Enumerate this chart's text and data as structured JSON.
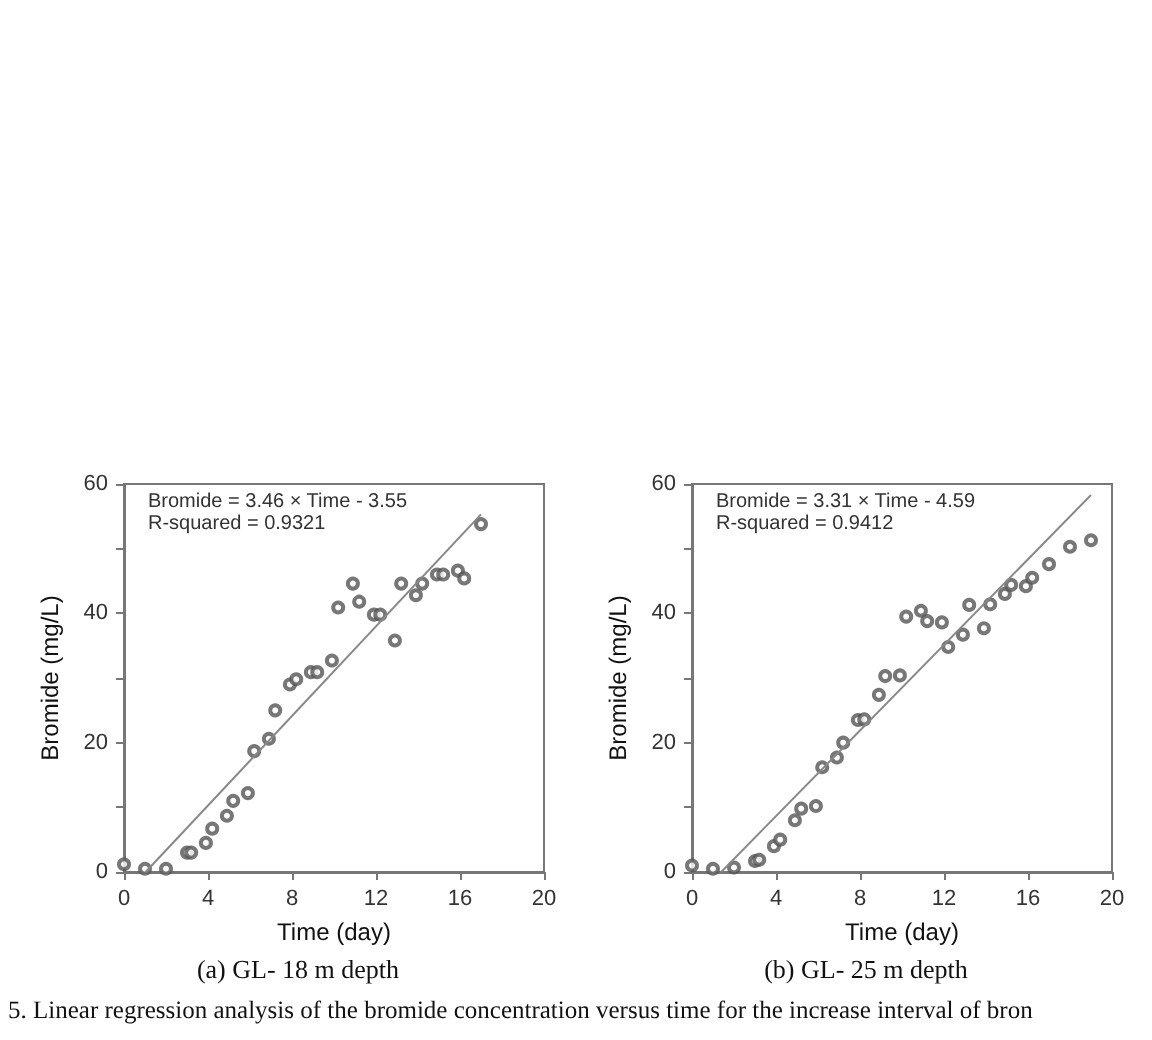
{
  "chart_data": [
    {
      "type": "scatter",
      "title": "(a) GL- 18 m depth",
      "xlabel": "Time (day)",
      "ylabel": "Bromide (mg/L)",
      "annotations": [
        "Bromide = 3.46 × Time - 3.55",
        "R-squared = 0.9321",
        "5. Linear regression analysis of the bromide concentration versus time for the increase interval of bron"
      ],
      "series": [
        {
          "color": "#555555",
          "marker": "circle",
          "x": [
            0,
            1,
            2,
            3,
            3.2,
            3.9,
            4.2,
            4.9,
            5.2,
            5.9,
            6.2,
            6.9,
            7.2,
            7.9,
            8.2,
            8.9,
            9.2,
            9.9,
            10.2,
            10.9,
            11.2,
            11.9,
            12.2,
            12.9,
            13.2,
            13.9,
            14.2,
            14.9,
            15.2,
            15.9,
            16.2,
            17
          ],
          "values": [
            1.2,
            0.5,
            0.5,
            3,
            3,
            4.5,
            6.7,
            8.7,
            11,
            12.2,
            18.7,
            20.6,
            25,
            29,
            29.8,
            30.9,
            30.9,
            32.7,
            40.9,
            44.6,
            41.8,
            39.8,
            39.8,
            35.8,
            44.6,
            42.8,
            44.6,
            46,
            46,
            46.6,
            45.4,
            53.8
          ]
        },
        {
          "type": "line",
          "color": "#888888",
          "line_style": "solid",
          "x": [
            1.03,
            17
          ],
          "values": [
            0,
            55.3
          ]
        }
      ],
      "xlim": [
        0,
        20
      ],
      "xticks": [
        0,
        4,
        8,
        12,
        16,
        20
      ],
      "ylim": [
        0,
        60
      ],
      "yticks": [
        0,
        {
          "value": 10,
          "label": null
        },
        20,
        {
          "value": 30,
          "label": null
        },
        40,
        {
          "value": 50,
          "label": null
        },
        60
      ],
      "grid": false
    },
    {
      "type": "scatter",
      "title": "(b) GL- 25 m depth",
      "xlabel": "Time (day)",
      "ylabel": "Bromide (mg/L)",
      "annotations": [
        "Bromide = 3.31 × Time - 4.59",
        "R-squared = 0.9412"
      ],
      "series": [
        {
          "color": "#555555",
          "marker": "circle",
          "x": [
            0,
            1,
            2,
            3,
            3.2,
            3.9,
            4.2,
            4.9,
            5.2,
            5.9,
            6.2,
            6.9,
            7.2,
            7.9,
            8.2,
            8.9,
            9.2,
            9.9,
            10.2,
            10.9,
            11.2,
            11.9,
            12.2,
            12.9,
            13.2,
            13.9,
            14.2,
            14.9,
            15.2,
            15.9,
            16.2,
            17,
            18,
            19
          ],
          "values": [
            1,
            0.5,
            0.7,
            1.7,
            1.9,
            4,
            5,
            8,
            9.8,
            10.2,
            16.2,
            17.7,
            20,
            23.5,
            23.6,
            27.4,
            30.3,
            30.4,
            39.5,
            40.4,
            38.8,
            38.6,
            34.8,
            36.7,
            41.3,
            37.7,
            41.4,
            43,
            44.4,
            44.2,
            45.5,
            47.6,
            50.3,
            51.3
          ]
        },
        {
          "type": "line",
          "color": "#888888",
          "line_style": "solid",
          "x": [
            1.39,
            19
          ],
          "values": [
            0,
            58.3
          ]
        }
      ],
      "xlim": [
        0,
        20
      ],
      "xticks": [
        0,
        4,
        8,
        12,
        16,
        20
      ],
      "ylim": [
        0,
        60
      ],
      "yticks": [
        0,
        {
          "value": 10,
          "label": null
        },
        20,
        {
          "value": 30,
          "label": null
        },
        40,
        {
          "value": 50,
          "label": null
        },
        60
      ],
      "grid": false
    }
  ]
}
